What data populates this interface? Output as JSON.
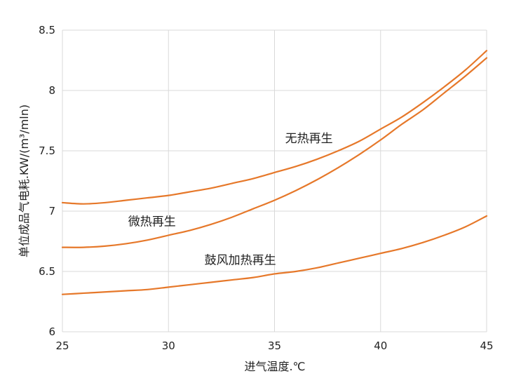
{
  "chart_data": {
    "type": "line",
    "xlabel": "进气温度.℃",
    "ylabel": "单位成品气电耗.KW/(m³/mln)",
    "xlim": [
      25,
      45
    ],
    "ylim": [
      6,
      8.5
    ],
    "x_ticks": [
      "25",
      "30",
      "35",
      "40",
      "45"
    ],
    "y_ticks": [
      "6",
      "6.5",
      "7",
      "7.5",
      "8",
      "8.5"
    ],
    "grid": true,
    "legend": "none",
    "line_color": "#e6782a",
    "series": [
      {
        "name": "无热再生",
        "x": [
          25,
          26,
          27,
          28,
          29,
          30,
          31,
          32,
          33,
          34,
          35,
          36,
          37,
          38,
          39,
          40,
          41,
          42,
          43,
          44,
          45
        ],
        "values": [
          7.07,
          7.06,
          7.07,
          7.09,
          7.11,
          7.13,
          7.16,
          7.19,
          7.23,
          7.27,
          7.32,
          7.37,
          7.43,
          7.5,
          7.58,
          7.68,
          7.78,
          7.9,
          8.03,
          8.17,
          8.33
        ]
      },
      {
        "name": "微热再生",
        "x": [
          25,
          26,
          27,
          28,
          29,
          30,
          31,
          32,
          33,
          34,
          35,
          36,
          37,
          38,
          39,
          40,
          41,
          42,
          43,
          44,
          45
        ],
        "values": [
          6.7,
          6.7,
          6.71,
          6.73,
          6.76,
          6.8,
          6.84,
          6.89,
          6.95,
          7.02,
          7.09,
          7.17,
          7.26,
          7.36,
          7.47,
          7.59,
          7.72,
          7.84,
          7.98,
          8.12,
          8.27
        ]
      },
      {
        "name": "鼓风加热再生",
        "x": [
          25,
          26,
          27,
          28,
          29,
          30,
          31,
          32,
          33,
          34,
          35,
          36,
          37,
          38,
          39,
          40,
          41,
          42,
          43,
          44,
          45
        ],
        "values": [
          6.31,
          6.32,
          6.33,
          6.34,
          6.35,
          6.37,
          6.39,
          6.41,
          6.43,
          6.45,
          6.48,
          6.5,
          6.53,
          6.57,
          6.61,
          6.65,
          6.69,
          6.74,
          6.8,
          6.87,
          6.96
        ]
      }
    ]
  }
}
